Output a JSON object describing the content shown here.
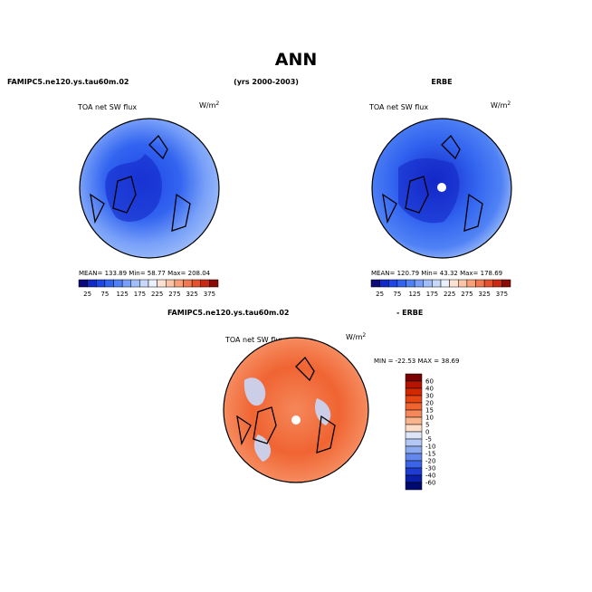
{
  "title": "ANN",
  "top_headers": {
    "left": "FAMIPC5.ne120.ys.tau60m.02",
    "center": "(yrs 2000-2003)",
    "right": "ERBE"
  },
  "panels": [
    {
      "variable": "TOA net SW flux",
      "units": "W/m",
      "units_exp": "2",
      "stats": "MEAN= 133.89   Min=  58.77   Max= 208.04"
    },
    {
      "variable": "TOA net SW flux",
      "units": "W/m",
      "units_exp": "2",
      "stats": "MEAN= 120.79   Min=  43.32   Max= 178.69"
    }
  ],
  "colorbar": {
    "labels": [
      "25",
      "75",
      "125",
      "175",
      "225",
      "275",
      "325",
      "375"
    ],
    "colors": [
      "#0a0a78",
      "#1428c8",
      "#1e46e6",
      "#3264f0",
      "#5082f5",
      "#78a0f8",
      "#a0bef9",
      "#c8d8fb",
      "#eaf0fc",
      "#fde2d2",
      "#fbc4a6",
      "#f8a07a",
      "#f27850",
      "#e6502c",
      "#c82814",
      "#8c0a05"
    ]
  },
  "diff": {
    "left_header": "FAMIPC5.ne120.ys.tau60m.02",
    "right_header": "- ERBE",
    "variable": "TOA net SW flux",
    "units": "W/m",
    "units_exp": "2",
    "stats": "MIN = -22.53  MAX =  38.69",
    "colorbar": {
      "labels": [
        "60",
        "40",
        "30",
        "20",
        "15",
        "10",
        "5",
        "0",
        "-5",
        "-10",
        "-15",
        "-20",
        "-30",
        "-40",
        "-60"
      ],
      "colors": [
        "#780000",
        "#b41400",
        "#d22800",
        "#e64614",
        "#f06432",
        "#f5875a",
        "#fab48c",
        "#fddcc8",
        "#dce6f8",
        "#b4c8f5",
        "#8caaf0",
        "#6487eb",
        "#3c64e6",
        "#1e3cd2",
        "#0a1eaa",
        "#000a6e"
      ]
    }
  }
}
